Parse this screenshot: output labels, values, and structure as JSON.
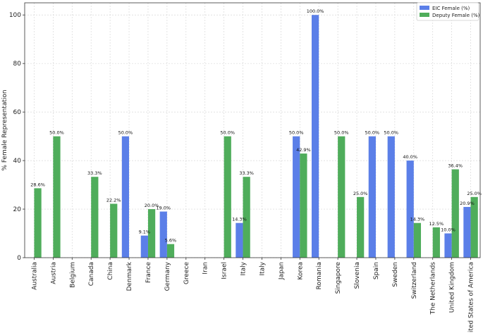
{
  "chart_data": {
    "type": "bar",
    "title": "",
    "xlabel": "",
    "ylabel": "% Female Representation",
    "ylim": [
      0,
      105
    ],
    "yticks": [
      0,
      20,
      40,
      60,
      80,
      100
    ],
    "grid": true,
    "legend_position": "top-right",
    "categories": [
      "Australia",
      "Austria",
      "Belgium",
      "Canada",
      "China",
      "Denmark",
      "France",
      "Germany",
      "Greece",
      "Iran",
      "Israel",
      "Italy",
      "Italy",
      "Japan",
      "Korea",
      "Romania",
      "Singapore",
      "Slovenia",
      "Spain",
      "Sweden",
      "Switzerland",
      "The Netherlands",
      "United Kingdom",
      "United States of America"
    ],
    "series": [
      {
        "name": "EIC Female (%)",
        "color": "#5b7fe8",
        "values": [
          null,
          null,
          null,
          null,
          null,
          50.0,
          9.1,
          19.0,
          null,
          null,
          null,
          14.3,
          null,
          null,
          50.0,
          100.0,
          null,
          null,
          50.0,
          50.0,
          40.0,
          null,
          10.0,
          20.9
        ],
        "labels": [
          "",
          "",
          "",
          "",
          "",
          "50.0%",
          "9.1%",
          "19.0%",
          "",
          "",
          "",
          "14.3%",
          "",
          "",
          "50.0%",
          "100.0%",
          "",
          "",
          "50.0%",
          "50.0%",
          "40.0%",
          "",
          "10.0%",
          "20.9%"
        ]
      },
      {
        "name": "Deputy Female (%)",
        "color": "#4fad5b",
        "values": [
          28.6,
          50.0,
          null,
          33.3,
          22.2,
          null,
          20.0,
          5.6,
          null,
          null,
          50.0,
          33.3,
          null,
          null,
          42.9,
          null,
          50.0,
          25.0,
          null,
          null,
          14.3,
          12.5,
          36.4,
          25.0
        ],
        "labels": [
          "28.6%",
          "50.0%",
          "",
          "33.3%",
          "22.2%",
          "",
          "20.0%",
          "5.6%",
          "",
          "",
          "50.0%",
          "33.3%",
          "",
          "",
          "42.9%",
          "",
          "50.0%",
          "25.0%",
          "",
          "",
          "14.3%",
          "12.5%",
          "36.4%",
          "25.0%"
        ]
      }
    ]
  }
}
